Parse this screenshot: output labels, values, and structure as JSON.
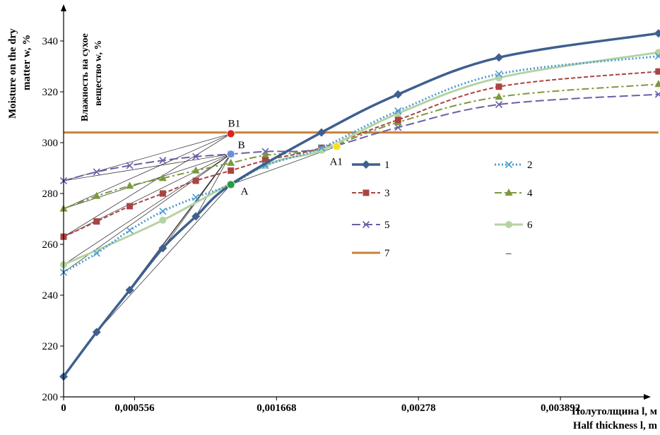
{
  "chart_data": {
    "type": "line",
    "ylabel": "Moisture on the dry matter w, %",
    "ylabel_lines": [
      "Moisture on the dry",
      "matter w, %"
    ],
    "ylabel_ru": "Влажность на сухое вещество w, %",
    "ylabel_ru_lines": [
      "Влажность на сухое",
      "вещество w, %"
    ],
    "xlabel_ru": "Полутолщина l, м",
    "xlabel": "Half thickness l, m",
    "ylim": [
      200,
      350
    ],
    "xlim": [
      0,
      0.0046
    ],
    "yticks": [
      200,
      220,
      240,
      260,
      280,
      300,
      320,
      340
    ],
    "xticks": [
      {
        "value": 0,
        "label": "0"
      },
      {
        "value": 0.000556,
        "label": "0,000556"
      },
      {
        "value": 0.001668,
        "label": "0,001668"
      },
      {
        "value": 0.00278,
        "label": "0,00278"
      },
      {
        "value": 0.003892,
        "label": "0,003892"
      }
    ],
    "series": [
      {
        "name": "1",
        "color": "#3E5F8F",
        "dash": "",
        "width": 3.5,
        "marker": "diamond",
        "x": [
          0,
          0.000259,
          0.000518,
          0.000777,
          0.001036,
          0.00131,
          0.00202,
          0.00262,
          0.00341,
          0.00466
        ],
        "y": [
          208,
          225.5,
          242,
          258.5,
          271,
          283.5,
          304,
          319,
          333.5,
          343
        ]
      },
      {
        "name": "2",
        "color": "#4A9BD0",
        "dash": "2 3",
        "width": 3,
        "marker": "x",
        "x": [
          0,
          0.000259,
          0.000518,
          0.000777,
          0.001036,
          0.00131,
          0.00158,
          0.00202,
          0.00262,
          0.00341,
          0.00466
        ],
        "y": [
          249,
          256.5,
          265.5,
          273,
          278.5,
          283.5,
          291,
          298,
          312.5,
          327,
          334
        ]
      },
      {
        "name": "3",
        "color": "#A94442",
        "dash": "6 3",
        "width": 2,
        "marker": "square",
        "x": [
          0,
          0.000259,
          0.000518,
          0.000777,
          0.001036,
          0.00131,
          0.00158,
          0.00202,
          0.00262,
          0.00341,
          0.00466
        ],
        "y": [
          263,
          269,
          275,
          280,
          285,
          289,
          293,
          298,
          309,
          322,
          328
        ]
      },
      {
        "name": "4",
        "color": "#7A9A3A",
        "dash": "10 4 3 4",
        "width": 2,
        "marker": "triangle",
        "x": [
          0,
          0.000259,
          0.000518,
          0.000777,
          0.001036,
          0.00131,
          0.00158,
          0.00202,
          0.00262,
          0.00341,
          0.00466
        ],
        "y": [
          274,
          279,
          283,
          286,
          289,
          292,
          295,
          297.5,
          308,
          318,
          323
        ]
      },
      {
        "name": "5",
        "color": "#6A5FA8",
        "dash": "12 5",
        "width": 2,
        "marker": "x",
        "x": [
          0,
          0.000259,
          0.000518,
          0.000777,
          0.001036,
          0.00131,
          0.00158,
          0.00202,
          0.00262,
          0.00341,
          0.00466
        ],
        "y": [
          285,
          288.5,
          291,
          293,
          294.5,
          295.5,
          296.5,
          297.5,
          306,
          315,
          319
        ]
      },
      {
        "name": "6",
        "color": "#B5D3A5",
        "dash": "",
        "width": 3,
        "marker": "circle",
        "x": [
          0,
          0.000777,
          0.00158,
          0.00202,
          0.00262,
          0.00341,
          0.00466
        ],
        "y": [
          252,
          269.5,
          291,
          297,
          311.5,
          325.5,
          335.5
        ]
      },
      {
        "name": "7",
        "color": "#C8823A",
        "dash": "",
        "width": 3,
        "marker": "none",
        "x": [
          0,
          0.00466
        ],
        "y": [
          304,
          304
        ]
      }
    ],
    "tangent_lines": [
      {
        "from": [
          0,
          208
        ],
        "to": [
          0.00131,
          295.5
        ]
      },
      {
        "from": [
          0,
          249
        ],
        "to": [
          0.00131,
          295.5
        ]
      },
      {
        "from": [
          0,
          252
        ],
        "to": [
          0.00131,
          295.5
        ]
      },
      {
        "from": [
          0,
          263
        ],
        "to": [
          0.00131,
          295.5
        ]
      },
      {
        "from": [
          0,
          274
        ],
        "to": [
          0.00131,
          295.5
        ]
      },
      {
        "from": [
          0,
          285
        ],
        "to": [
          0.00131,
          295.5
        ]
      },
      {
        "from": [
          0,
          285
        ],
        "to": [
          0.00131,
          303.5
        ]
      },
      {
        "from": [
          0,
          274
        ],
        "to": [
          0.00131,
          303.5
        ]
      },
      {
        "from": [
          0,
          263
        ],
        "to": [
          0.00131,
          303.5
        ]
      },
      {
        "from": [
          0.000518,
          242
        ],
        "to": [
          0.00131,
          295.5
        ]
      },
      {
        "from": [
          0.000777,
          258.5
        ],
        "to": [
          0.00131,
          295.5
        ]
      },
      {
        "from": [
          0.001036,
          271
        ],
        "to": [
          0.00131,
          295.5
        ]
      },
      {
        "from": [
          0.000259,
          225.5
        ],
        "to": [
          0.00131,
          283.5
        ]
      },
      {
        "from": [
          0.00131,
          283.5
        ],
        "to": [
          0.00214,
          298.5
        ]
      }
    ],
    "points": [
      {
        "label": "B1",
        "x": 0.00131,
        "y": 303.5,
        "color": "#E02020"
      },
      {
        "label": "B",
        "x": 0.00131,
        "y": 295.5,
        "color": "#6A8FD8"
      },
      {
        "label": "A",
        "x": 0.00131,
        "y": 283.5,
        "color": "#20A040"
      },
      {
        "label": "A1",
        "x": 0.00214,
        "y": 298.5,
        "color": "#F5E020"
      }
    ],
    "legend": {
      "placement": "center-right",
      "entries": [
        {
          "name": "1"
        },
        {
          "name": "2"
        },
        {
          "name": "3"
        },
        {
          "name": "4"
        },
        {
          "name": "5"
        },
        {
          "name": "6"
        },
        {
          "name": "7"
        },
        {
          "name": "–",
          "blank": true
        }
      ]
    },
    "grid": false
  }
}
